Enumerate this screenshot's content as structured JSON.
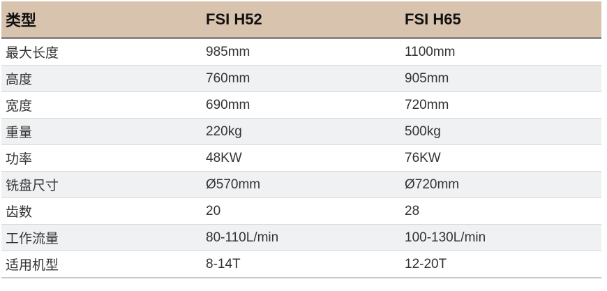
{
  "table": {
    "columns": [
      {
        "label": "类型"
      },
      {
        "label": "FSI H52"
      },
      {
        "label": "FSI H65"
      }
    ],
    "rows": [
      [
        "最大长度",
        "985mm",
        "1100mm"
      ],
      [
        "高度",
        "760mm",
        "905mm"
      ],
      [
        "宽度",
        "690mm",
        "720mm"
      ],
      [
        "重量",
        "220kg",
        "500kg"
      ],
      [
        "功率",
        "48KW",
        "76KW"
      ],
      [
        "铣盘尺寸",
        "Ø570mm",
        "Ø720mm"
      ],
      [
        "齿数",
        "20",
        "28"
      ],
      [
        "工作流量",
        "80-110L/min",
        "100-130L/min"
      ],
      [
        "适用机型",
        "8-14T",
        "12-20T"
      ]
    ],
    "colors": {
      "header_bg": "#d8c4ae",
      "header_border": "#8c8780",
      "stripe_bg": "#f0f1f3",
      "row_border": "#d9d9d9",
      "bottom_border": "#c9c9c9",
      "header_text": "#111111",
      "body_text": "#333333"
    }
  }
}
